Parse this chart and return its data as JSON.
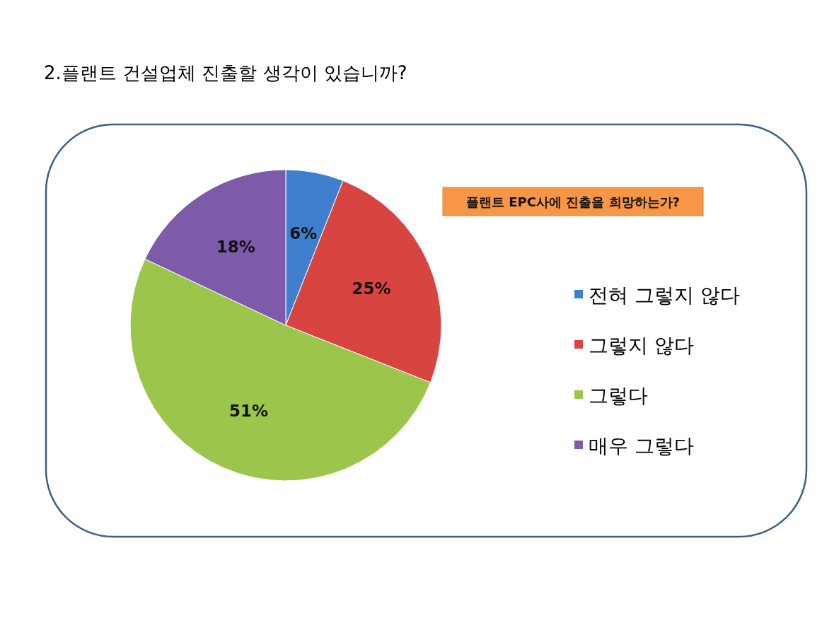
{
  "chart_data": {
    "type": "pie",
    "title": "2.플랜트 건설업체 진출할 생각이 있습니까?",
    "subtitle": "플랜트 EPC사에 진출을 희망하는가?",
    "categories": [
      "전혀 그렇지 않다",
      "그렇지 않다",
      "그렇다",
      "매우 그렇다"
    ],
    "values": [
      6,
      25,
      51,
      18
    ],
    "colors": [
      "#3f7fce",
      "#d8443f",
      "#9cc64b",
      "#7d5ba8"
    ],
    "value_labels": [
      "6%",
      "25%",
      "51%",
      "18%"
    ],
    "legend": "right"
  }
}
